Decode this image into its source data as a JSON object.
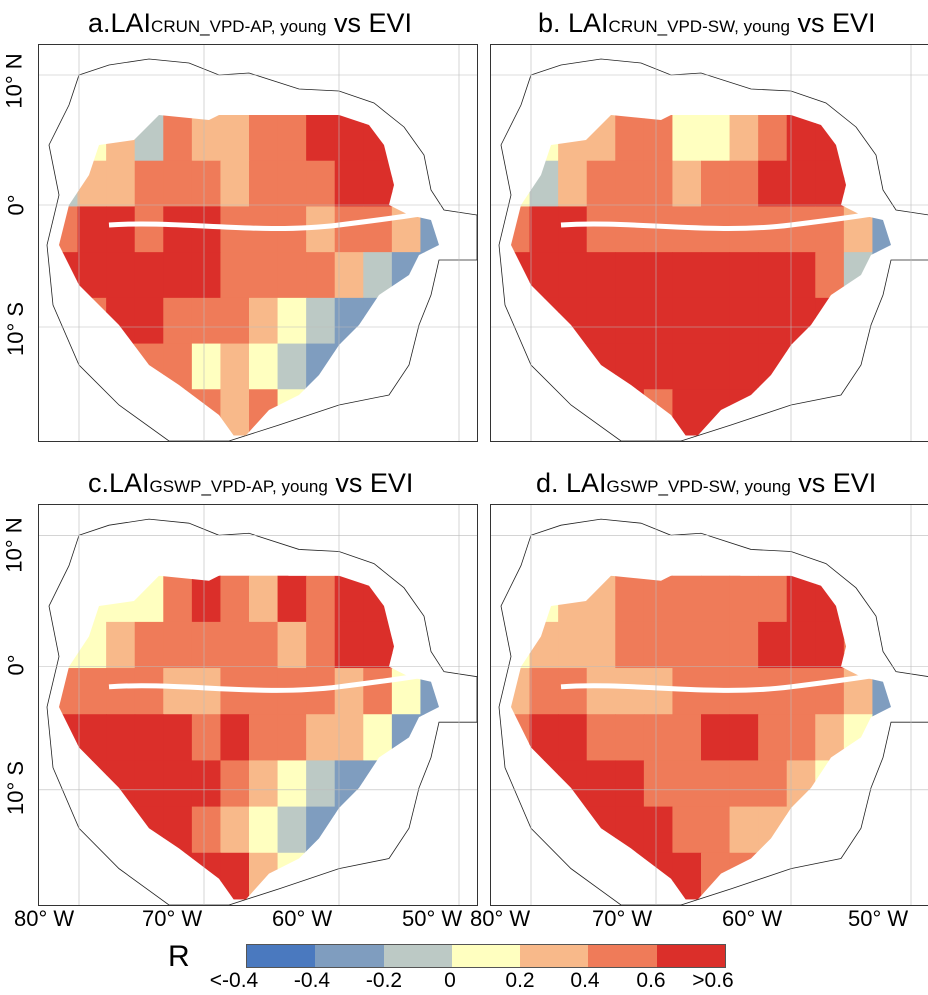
{
  "panels": [
    {
      "id": "a",
      "prefix": "a.LAI",
      "sub": "CRUN_VPD-AP, young",
      "suffix": " vs EVI",
      "pattern": [
        [
          3,
          3,
          4,
          2,
          5,
          4,
          4,
          5,
          5,
          6,
          6,
          6,
          5,
          3
        ],
        [
          2,
          4,
          4,
          5,
          5,
          5,
          4,
          5,
          5,
          5,
          6,
          6,
          6,
          3
        ],
        [
          5,
          6,
          6,
          5,
          6,
          6,
          5,
          5,
          5,
          4,
          5,
          5,
          4,
          1
        ],
        [
          6,
          6,
          6,
          6,
          6,
          6,
          5,
          5,
          5,
          5,
          4,
          2,
          1,
          1
        ],
        [
          4,
          5,
          6,
          6,
          5,
          5,
          5,
          4,
          3,
          2,
          1,
          1,
          1,
          1
        ],
        [
          3,
          4,
          5,
          5,
          5,
          3,
          4,
          3,
          2,
          1,
          1,
          1,
          2,
          1
        ],
        [
          3,
          3,
          4,
          5,
          5,
          5,
          4,
          5,
          3,
          2,
          3,
          3,
          3,
          3
        ]
      ]
    },
    {
      "id": "b",
      "prefix": "b. LAI",
      "sub": "CRUN_VPD-SW, young",
      "suffix": " vs EVI",
      "pattern": [
        [
          4,
          3,
          4,
          4,
          5,
          5,
          3,
          3,
          4,
          5,
          6,
          6,
          6,
          3
        ],
        [
          3,
          2,
          4,
          5,
          5,
          5,
          4,
          5,
          5,
          6,
          6,
          6,
          6,
          2
        ],
        [
          5,
          6,
          6,
          5,
          5,
          5,
          5,
          5,
          5,
          5,
          5,
          5,
          4,
          1
        ],
        [
          6,
          6,
          6,
          6,
          6,
          6,
          6,
          6,
          6,
          6,
          6,
          5,
          2,
          1
        ],
        [
          6,
          6,
          6,
          6,
          6,
          6,
          6,
          6,
          6,
          6,
          6,
          6,
          5,
          2
        ],
        [
          5,
          6,
          6,
          6,
          6,
          6,
          6,
          6,
          6,
          6,
          6,
          6,
          5,
          5
        ],
        [
          5,
          5,
          6,
          6,
          6,
          5,
          6,
          6,
          6,
          6,
          5,
          5,
          5,
          5
        ]
      ]
    },
    {
      "id": "c",
      "prefix": "c.LAI",
      "sub": "GSWP_VPD-AP, young",
      "suffix": " vs EVI",
      "pattern": [
        [
          2,
          3,
          3,
          3,
          5,
          6,
          5,
          4,
          6,
          5,
          6,
          6,
          5,
          1
        ],
        [
          3,
          3,
          4,
          5,
          5,
          5,
          5,
          5,
          4,
          5,
          6,
          6,
          6,
          3
        ],
        [
          5,
          5,
          5,
          5,
          4,
          4,
          5,
          5,
          5,
          5,
          4,
          5,
          3,
          1
        ],
        [
          6,
          6,
          6,
          6,
          6,
          5,
          6,
          5,
          5,
          4,
          4,
          3,
          1,
          1
        ],
        [
          5,
          6,
          6,
          6,
          6,
          6,
          5,
          4,
          3,
          2,
          1,
          1,
          1,
          1
        ],
        [
          4,
          5,
          6,
          6,
          6,
          5,
          4,
          3,
          2,
          1,
          1,
          1,
          1,
          1
        ],
        [
          5,
          5,
          6,
          6,
          6,
          6,
          6,
          4,
          3,
          2,
          2,
          2,
          2,
          2
        ]
      ]
    },
    {
      "id": "d",
      "prefix": "d. LAI",
      "sub": "GSWP_VPD-SW, young",
      "suffix": " vs EVI",
      "pattern": [
        [
          3,
          3,
          4,
          4,
          5,
          5,
          5,
          5,
          5,
          5,
          6,
          6,
          5,
          3
        ],
        [
          3,
          4,
          4,
          4,
          5,
          5,
          5,
          5,
          5,
          6,
          6,
          6,
          5,
          3
        ],
        [
          4,
          5,
          5,
          4,
          4,
          4,
          5,
          5,
          5,
          5,
          5,
          5,
          4,
          1
        ],
        [
          5,
          6,
          6,
          5,
          5,
          5,
          5,
          6,
          6,
          5,
          5,
          4,
          3,
          1
        ],
        [
          5,
          6,
          6,
          6,
          6,
          5,
          5,
          5,
          5,
          5,
          4,
          3,
          3,
          2
        ],
        [
          5,
          6,
          6,
          6,
          6,
          6,
          5,
          5,
          4,
          4,
          4,
          4,
          4,
          4
        ],
        [
          5,
          6,
          6,
          6,
          6,
          6,
          6,
          5,
          5,
          4,
          4,
          4,
          4,
          4
        ]
      ]
    }
  ],
  "lat_labels": [
    "10° N",
    "0°",
    "10° S"
  ],
  "lon_labels": [
    "80° W",
    "70° W",
    "60° W",
    "50° W"
  ],
  "legend": {
    "title": "R",
    "colors": [
      "#4a79bf",
      "#7f9dbf",
      "#bcc9c5",
      "#ffffc0",
      "#f8b98a",
      "#ef7b59",
      "#db2f2a"
    ],
    "ticks": [
      "<-0.4",
      "-0.4",
      "-0.2",
      "0",
      "0.2",
      "0.4",
      "0.6",
      ">0.6"
    ]
  }
}
